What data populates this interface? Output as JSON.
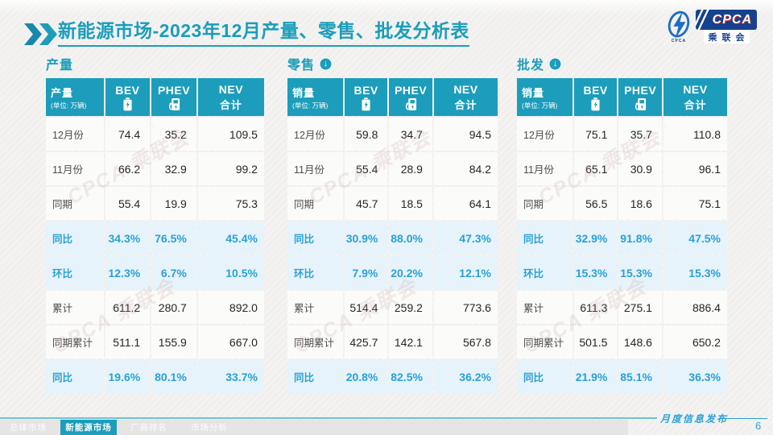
{
  "title": {
    "text": "新能源市场-2023年12月产量、零售、批发分析表"
  },
  "logo": {
    "name": "CPCA",
    "sub": "乘联会",
    "emblem_text": "CPCA"
  },
  "watermark": "CPCA 乘联会",
  "colors": {
    "teal": "#1b9dbb",
    "teal_dark": "#1787ad",
    "blue": "#29a1d6",
    "highlight_bg": "#e7f3fa",
    "rule": "#6ac4d8",
    "navy": "#16418f"
  },
  "tables": [
    {
      "section": "产量",
      "arrow": false,
      "head": {
        "label": "产量",
        "unit": "(单位: 万辆)"
      },
      "columns": [
        {
          "label": "BEV",
          "icon": "battery-icon"
        },
        {
          "label": "PHEV",
          "icon": "charger-icon"
        },
        {
          "label": "NEV",
          "label2": "合计"
        }
      ],
      "rows": [
        {
          "label": "12月份",
          "values": [
            "74.4",
            "35.2",
            "109.5"
          ],
          "highlight": false
        },
        {
          "label": "11月份",
          "values": [
            "66.2",
            "32.9",
            "99.2"
          ],
          "highlight": false
        },
        {
          "label": "同期",
          "values": [
            "55.4",
            "19.9",
            "75.3"
          ],
          "highlight": false
        },
        {
          "label": "同比",
          "values": [
            "34.3%",
            "76.5%",
            "45.4%"
          ],
          "highlight": true
        },
        {
          "label": "环比",
          "values": [
            "12.3%",
            "6.7%",
            "10.5%"
          ],
          "highlight": true
        },
        {
          "label": "累计",
          "values": [
            "611.2",
            "280.7",
            "892.0"
          ],
          "highlight": false
        },
        {
          "label": "同期累计",
          "values": [
            "511.1",
            "155.9",
            "667.0"
          ],
          "highlight": false
        },
        {
          "label": "同比",
          "values": [
            "19.6%",
            "80.1%",
            "33.7%"
          ],
          "highlight": true
        }
      ]
    },
    {
      "section": "零售",
      "arrow": true,
      "head": {
        "label": "销量",
        "unit": "(单位: 万辆)"
      },
      "columns": [
        {
          "label": "BEV",
          "icon": "battery-icon"
        },
        {
          "label": "PHEV",
          "icon": "charger-icon"
        },
        {
          "label": "NEV",
          "label2": "合计"
        }
      ],
      "rows": [
        {
          "label": "12月份",
          "values": [
            "59.8",
            "34.7",
            "94.5"
          ],
          "highlight": false
        },
        {
          "label": "11月份",
          "values": [
            "55.4",
            "28.9",
            "84.2"
          ],
          "highlight": false
        },
        {
          "label": "同期",
          "values": [
            "45.7",
            "18.5",
            "64.1"
          ],
          "highlight": false
        },
        {
          "label": "同比",
          "values": [
            "30.9%",
            "88.0%",
            "47.3%"
          ],
          "highlight": true
        },
        {
          "label": "环比",
          "values": [
            "7.9%",
            "20.2%",
            "12.1%"
          ],
          "highlight": true
        },
        {
          "label": "累计",
          "values": [
            "514.4",
            "259.2",
            "773.6"
          ],
          "highlight": false
        },
        {
          "label": "同期累计",
          "values": [
            "425.7",
            "142.1",
            "567.8"
          ],
          "highlight": false
        },
        {
          "label": "同比",
          "values": [
            "20.8%",
            "82.5%",
            "36.2%"
          ],
          "highlight": true
        }
      ]
    },
    {
      "section": "批发",
      "arrow": true,
      "head": {
        "label": "销量",
        "unit": "(单位: 万辆)"
      },
      "columns": [
        {
          "label": "BEV",
          "icon": "battery-icon"
        },
        {
          "label": "PHEV",
          "icon": "charger-icon"
        },
        {
          "label": "NEV",
          "label2": "合计"
        }
      ],
      "rows": [
        {
          "label": "12月份",
          "values": [
            "75.1",
            "35.7",
            "110.8"
          ],
          "highlight": false
        },
        {
          "label": "11月份",
          "values": [
            "65.1",
            "30.9",
            "96.1"
          ],
          "highlight": false
        },
        {
          "label": "同期",
          "values": [
            "56.5",
            "18.6",
            "75.1"
          ],
          "highlight": false
        },
        {
          "label": "同比",
          "values": [
            "32.9%",
            "91.8%",
            "47.5%"
          ],
          "highlight": true
        },
        {
          "label": "环比",
          "values": [
            "15.3%",
            "15.3%",
            "15.3%"
          ],
          "highlight": true
        },
        {
          "label": "累计",
          "values": [
            "611.3",
            "275.1",
            "886.4"
          ],
          "highlight": false
        },
        {
          "label": "同期累计",
          "values": [
            "501.5",
            "148.6",
            "650.2"
          ],
          "highlight": false
        },
        {
          "label": "同比",
          "values": [
            "21.9%",
            "85.1%",
            "36.3%"
          ],
          "highlight": true
        }
      ]
    }
  ],
  "footer": {
    "tabs": [
      {
        "label": "总体市场",
        "active": false
      },
      {
        "label": "新能源市场",
        "active": true
      },
      {
        "label": "厂商排名",
        "active": false
      },
      {
        "label": "市场分析",
        "active": false
      }
    ],
    "caption": "月度信息发布",
    "page": "6"
  }
}
